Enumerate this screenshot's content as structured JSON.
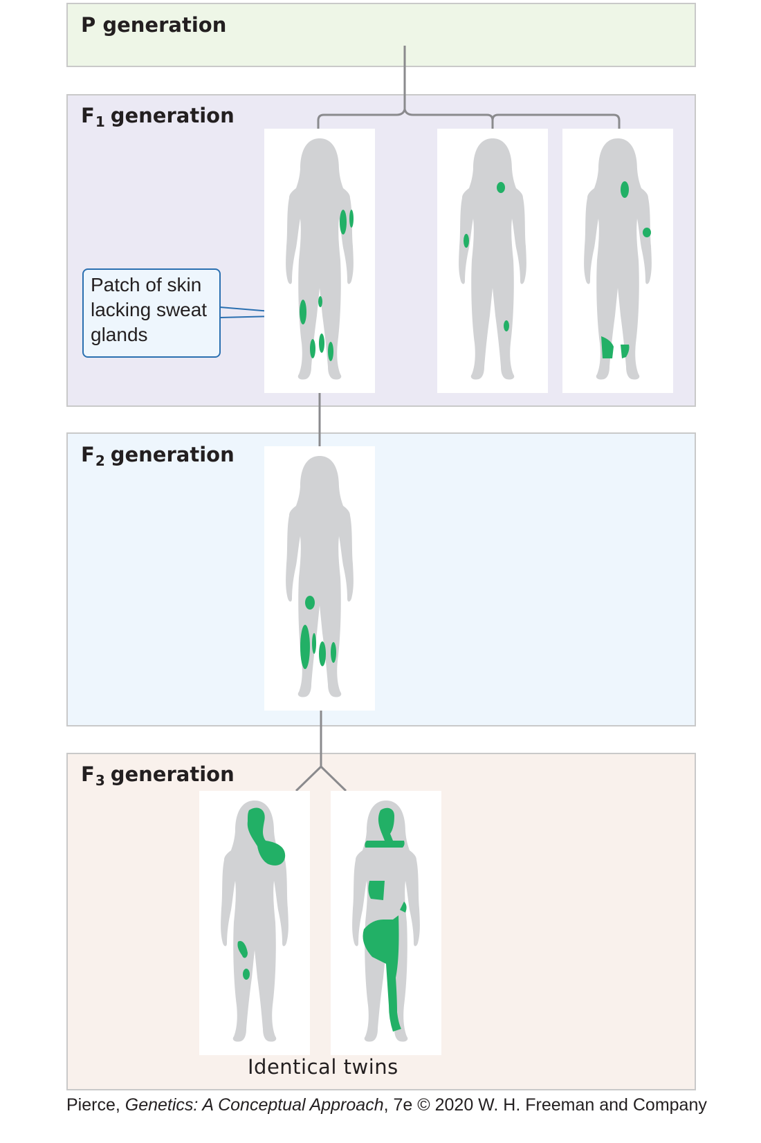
{
  "generations": {
    "p": {
      "label": "P generation"
    },
    "f1": {
      "prefix": "F",
      "sub": "1",
      "label": "generation"
    },
    "f2": {
      "prefix": "F",
      "sub": "2",
      "label": "generation"
    },
    "f3": {
      "prefix": "F",
      "sub": "3",
      "label": "generation"
    }
  },
  "callout": {
    "text": "Patch of skin lacking sweat glands"
  },
  "twins_label": "Identical twins",
  "credit": {
    "author": "Pierce, ",
    "title": "Genetics: A Conceptual Approach",
    "rest": ", 7e © 2020 W. H. Freeman and Company"
  },
  "colors": {
    "body": "#d1d2d4",
    "patch": "#22b066",
    "connector": "#8a8a8d",
    "callout_border": "#2a6fb0"
  }
}
